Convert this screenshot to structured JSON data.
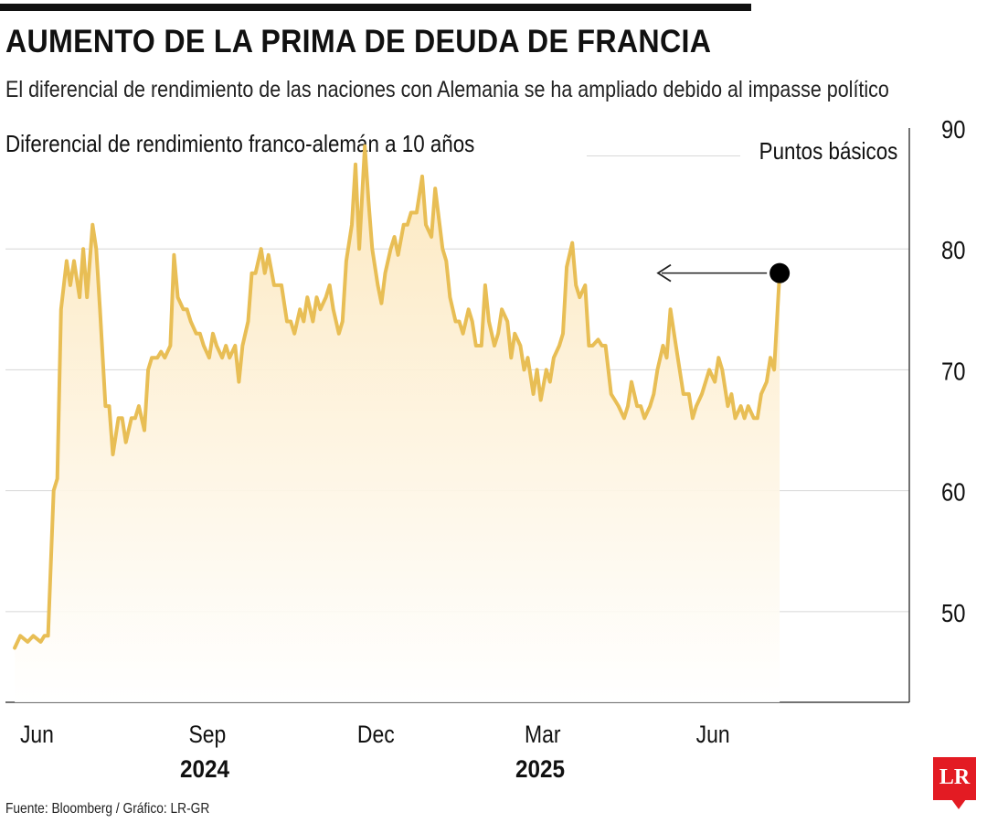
{
  "header": {
    "title": "AUMENTO DE LA PRIMA DE DEUDA DE FRANCIA",
    "subtitle": "El diferencial de rendimiento de las naciones con Alemania se ha ampliado debido al impasse político"
  },
  "footer": {
    "source": "Fuente: Bloomberg / Gráfico: LR-GR",
    "logo_text": "LR"
  },
  "colors": {
    "line": "#E8BE55",
    "fill_top": "#FCE7BC",
    "grid": "#d6d6d6",
    "marker": "#000000",
    "logo": "#E31B23"
  },
  "chart_data": {
    "type": "area",
    "title": "Diferencial de rendimiento franco-alemán a 10 años",
    "ylabel": "Puntos básicos",
    "ylim": [
      42.5,
      90
    ],
    "yticks": [
      50,
      60,
      70,
      80,
      90
    ],
    "grid": true,
    "x_ticks": [
      {
        "label": "Jun",
        "date": "2024-06-01"
      },
      {
        "label": "Sep",
        "date": "2024-09-01"
      },
      {
        "label": "Dec",
        "date": "2024-12-01"
      },
      {
        "label": "Mar",
        "date": "2025-03-01"
      },
      {
        "label": "Jun",
        "date": "2025-06-01"
      }
    ],
    "year_labels": [
      {
        "label": "2024",
        "date": "2024-09-01"
      },
      {
        "label": "2025",
        "date": "2025-03-01"
      }
    ],
    "x_range": [
      "2024-05-15",
      "2025-09-15"
    ],
    "series": [
      {
        "points": [
          [
            "2024-05-20",
            47
          ],
          [
            "2024-05-23",
            48
          ],
          [
            "2024-05-27",
            47.5
          ],
          [
            "2024-05-30",
            48
          ],
          [
            "2024-06-03",
            47.5
          ],
          [
            "2024-06-05",
            48
          ],
          [
            "2024-06-07",
            48
          ],
          [
            "2024-06-10",
            60
          ],
          [
            "2024-06-12",
            61
          ],
          [
            "2024-06-14",
            75
          ],
          [
            "2024-06-17",
            79
          ],
          [
            "2024-06-19",
            77
          ],
          [
            "2024-06-21",
            79
          ],
          [
            "2024-06-24",
            76
          ],
          [
            "2024-06-26",
            80
          ],
          [
            "2024-06-28",
            76
          ],
          [
            "2024-07-01",
            82
          ],
          [
            "2024-07-03",
            80
          ],
          [
            "2024-07-05",
            75
          ],
          [
            "2024-07-08",
            67
          ],
          [
            "2024-07-10",
            67
          ],
          [
            "2024-07-12",
            63
          ],
          [
            "2024-07-15",
            66
          ],
          [
            "2024-07-17",
            66
          ],
          [
            "2024-07-19",
            64
          ],
          [
            "2024-07-22",
            66
          ],
          [
            "2024-07-24",
            66
          ],
          [
            "2024-07-26",
            67
          ],
          [
            "2024-07-29",
            65
          ],
          [
            "2024-07-31",
            70
          ],
          [
            "2024-08-02",
            71
          ],
          [
            "2024-08-05",
            71
          ],
          [
            "2024-08-07",
            71.5
          ],
          [
            "2024-08-09",
            71
          ],
          [
            "2024-08-12",
            72
          ],
          [
            "2024-08-14",
            79.5
          ],
          [
            "2024-08-16",
            76
          ],
          [
            "2024-08-19",
            75
          ],
          [
            "2024-08-21",
            75
          ],
          [
            "2024-08-23",
            74
          ],
          [
            "2024-08-26",
            73
          ],
          [
            "2024-08-28",
            73
          ],
          [
            "2024-08-30",
            72
          ],
          [
            "2024-09-02",
            71
          ],
          [
            "2024-09-04",
            73
          ],
          [
            "2024-09-06",
            72
          ],
          [
            "2024-09-09",
            71
          ],
          [
            "2024-09-11",
            72
          ],
          [
            "2024-09-13",
            71
          ],
          [
            "2024-09-16",
            72
          ],
          [
            "2024-09-18",
            69
          ],
          [
            "2024-09-20",
            72
          ],
          [
            "2024-09-23",
            74
          ],
          [
            "2024-09-25",
            78
          ],
          [
            "2024-09-27",
            78
          ],
          [
            "2024-09-30",
            80
          ],
          [
            "2024-10-02",
            78
          ],
          [
            "2024-10-04",
            79.5
          ],
          [
            "2024-10-07",
            77
          ],
          [
            "2024-10-09",
            77
          ],
          [
            "2024-10-11",
            77
          ],
          [
            "2024-10-14",
            74
          ],
          [
            "2024-10-16",
            74
          ],
          [
            "2024-10-18",
            73
          ],
          [
            "2024-10-21",
            75
          ],
          [
            "2024-10-23",
            74
          ],
          [
            "2024-10-25",
            76
          ],
          [
            "2024-10-28",
            74
          ],
          [
            "2024-10-30",
            76
          ],
          [
            "2024-11-01",
            75
          ],
          [
            "2024-11-04",
            76
          ],
          [
            "2024-11-06",
            77
          ],
          [
            "2024-11-08",
            75
          ],
          [
            "2024-11-11",
            73
          ],
          [
            "2024-11-13",
            74
          ],
          [
            "2024-11-15",
            79
          ],
          [
            "2024-11-18",
            82
          ],
          [
            "2024-11-20",
            87
          ],
          [
            "2024-11-22",
            80
          ],
          [
            "2024-11-25",
            88.5
          ],
          [
            "2024-11-27",
            84
          ],
          [
            "2024-11-29",
            80
          ],
          [
            "2024-12-02",
            77
          ],
          [
            "2024-12-04",
            75.5
          ],
          [
            "2024-12-06",
            78
          ],
          [
            "2024-12-09",
            80
          ],
          [
            "2024-12-11",
            81
          ],
          [
            "2024-12-13",
            79.5
          ],
          [
            "2024-12-16",
            82
          ],
          [
            "2024-12-18",
            82
          ],
          [
            "2024-12-20",
            83
          ],
          [
            "2024-12-23",
            83
          ],
          [
            "2024-12-26",
            86
          ],
          [
            "2024-12-28",
            82
          ],
          [
            "2024-12-31",
            81
          ],
          [
            "2025-01-02",
            85
          ],
          [
            "2025-01-06",
            80
          ],
          [
            "2025-01-08",
            79
          ],
          [
            "2025-01-10",
            76
          ],
          [
            "2025-01-13",
            74
          ],
          [
            "2025-01-15",
            74
          ],
          [
            "2025-01-17",
            73
          ],
          [
            "2025-01-20",
            75
          ],
          [
            "2025-01-22",
            74
          ],
          [
            "2025-01-24",
            72
          ],
          [
            "2025-01-27",
            72
          ],
          [
            "2025-01-29",
            77
          ],
          [
            "2025-01-31",
            74
          ],
          [
            "2025-02-03",
            72
          ],
          [
            "2025-02-05",
            73
          ],
          [
            "2025-02-07",
            75
          ],
          [
            "2025-02-10",
            74
          ],
          [
            "2025-02-12",
            71
          ],
          [
            "2025-02-14",
            73
          ],
          [
            "2025-02-17",
            72
          ],
          [
            "2025-02-19",
            70
          ],
          [
            "2025-02-21",
            71
          ],
          [
            "2025-02-24",
            68
          ],
          [
            "2025-02-26",
            70
          ],
          [
            "2025-02-28",
            67.5
          ],
          [
            "2025-03-03",
            70
          ],
          [
            "2025-03-05",
            69
          ],
          [
            "2025-03-07",
            71
          ],
          [
            "2025-03-10",
            72
          ],
          [
            "2025-03-12",
            73
          ],
          [
            "2025-03-14",
            78.5
          ],
          [
            "2025-03-17",
            80.5
          ],
          [
            "2025-03-19",
            77
          ],
          [
            "2025-03-21",
            76
          ],
          [
            "2025-03-24",
            77
          ],
          [
            "2025-03-26",
            72
          ],
          [
            "2025-03-28",
            72
          ],
          [
            "2025-03-31",
            72.5
          ],
          [
            "2025-04-02",
            72
          ],
          [
            "2025-04-04",
            72
          ],
          [
            "2025-04-07",
            68
          ],
          [
            "2025-04-09",
            67.5
          ],
          [
            "2025-04-11",
            67
          ],
          [
            "2025-04-14",
            66
          ],
          [
            "2025-04-16",
            67
          ],
          [
            "2025-04-18",
            69
          ],
          [
            "2025-04-21",
            67
          ],
          [
            "2025-04-23",
            67
          ],
          [
            "2025-04-25",
            66
          ],
          [
            "2025-04-28",
            67
          ],
          [
            "2025-04-30",
            68
          ],
          [
            "2025-05-02",
            70
          ],
          [
            "2025-05-05",
            72
          ],
          [
            "2025-05-07",
            71
          ],
          [
            "2025-05-09",
            75
          ],
          [
            "2025-05-12",
            72
          ],
          [
            "2025-05-14",
            70
          ],
          [
            "2025-05-16",
            68
          ],
          [
            "2025-05-19",
            68
          ],
          [
            "2025-05-21",
            66
          ],
          [
            "2025-05-23",
            67
          ],
          [
            "2025-05-26",
            68
          ],
          [
            "2025-05-28",
            69
          ],
          [
            "2025-05-30",
            70
          ],
          [
            "2025-06-02",
            69
          ],
          [
            "2025-06-04",
            71
          ],
          [
            "2025-06-06",
            70
          ],
          [
            "2025-06-09",
            67
          ],
          [
            "2025-06-11",
            68
          ],
          [
            "2025-06-13",
            66
          ],
          [
            "2025-06-16",
            67
          ],
          [
            "2025-06-18",
            66
          ],
          [
            "2025-06-20",
            67
          ],
          [
            "2025-06-23",
            66
          ],
          [
            "2025-06-25",
            66
          ],
          [
            "2025-06-27",
            68
          ],
          [
            "2025-06-30",
            69
          ],
          [
            "2025-07-02",
            71
          ],
          [
            "2025-07-04",
            70
          ],
          [
            "2025-07-07",
            78
          ]
        ]
      }
    ],
    "annotation": {
      "type": "arrow",
      "points_to": "2025-07-07",
      "value": 78
    }
  }
}
